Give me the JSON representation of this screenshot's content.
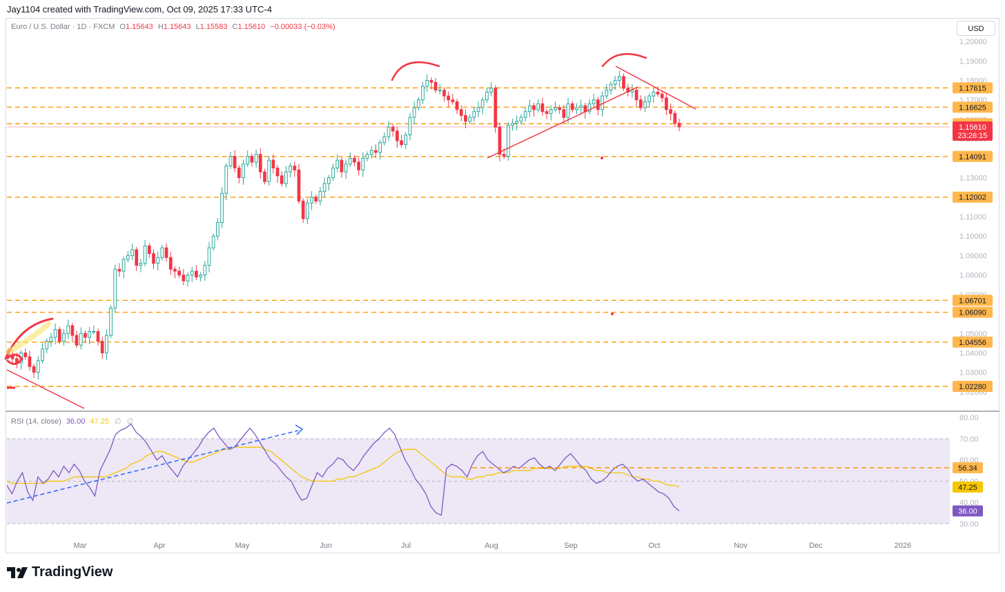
{
  "header": {
    "attribution": "Jay1104 created with TradingView.com, Oct 09, 2025 17:33 UTC-4"
  },
  "legend": {
    "symbol": "Euro / U.S. Dollar · 1D · FXCM",
    "open_label": "O",
    "open": "1.15643",
    "high_label": "H",
    "high": "1.15643",
    "low_label": "L",
    "low": "1.15583",
    "close_label": "C",
    "close": "1.15610",
    "change": "−0.00033 (−0.03%)"
  },
  "currency_button": "USD",
  "rsi_legend": {
    "label": "RSI (14, close)",
    "rsi_value": "36.00",
    "ma_value": "47.25",
    "icons": [
      "∅",
      "∅"
    ]
  },
  "brand": {
    "name": "TradingView"
  },
  "colors": {
    "up": "#26a69a",
    "down": "#f23645",
    "level_line": "#ff9800",
    "level_badge": "#ffb74d",
    "drawing": "#f23645",
    "rsi_line": "#7e57c2",
    "rsi_ma": "#f7c600",
    "rsi_band": "#ede7f6",
    "rsi_trend": "#2962ff"
  },
  "chart_data": [
    {
      "type": "candlestick",
      "title": "Euro / U.S. Dollar · 1D · FXCM",
      "x_tick_labels": [
        "Mar",
        "Apr",
        "May",
        "Jun",
        "Jul",
        "Aug",
        "Sep",
        "Oct",
        "Nov",
        "Dec",
        "2026"
      ],
      "y_tick_labels": [
        "1.20000",
        "1.19000",
        "1.18000",
        "1.17000",
        "1.16000",
        "1.15000",
        "1.14000",
        "1.13000",
        "1.12000",
        "1.11000",
        "1.10000",
        "1.09000",
        "1.08000",
        "1.07000",
        "1.06000",
        "1.05000",
        "1.04000",
        "1.03000",
        "1.02000"
      ],
      "ylim": [
        1.015,
        1.205
      ],
      "grid": false,
      "horizontal_levels": [
        1.17615,
        1.16625,
        1.15772,
        1.14091,
        1.12002,
        1.06701,
        1.0609,
        1.04556,
        1.0228
      ],
      "level_labels": [
        "1.17615",
        "1.16625",
        "1.15772",
        "1.14091",
        "1.12002",
        "1.06701",
        "1.06090",
        "1.04556",
        "1.02280"
      ],
      "last_price": "1.15610",
      "countdown": "23:26:15",
      "closes_approx": [
        1.039,
        1.037,
        1.035,
        1.04,
        1.038,
        1.033,
        1.03,
        1.036,
        1.042,
        1.046,
        1.048,
        1.052,
        1.046,
        1.05,
        1.054,
        1.049,
        1.044,
        1.05,
        1.048,
        1.051,
        1.051,
        1.046,
        1.04,
        1.049,
        1.063,
        1.083,
        1.082,
        1.088,
        1.09,
        1.093,
        1.085,
        1.086,
        1.095,
        1.091,
        1.086,
        1.089,
        1.094,
        1.089,
        1.083,
        1.082,
        1.08,
        1.077,
        1.08,
        1.082,
        1.079,
        1.08,
        1.085,
        1.094,
        1.1,
        1.107,
        1.122,
        1.136,
        1.141,
        1.135,
        1.13,
        1.137,
        1.141,
        1.138,
        1.142,
        1.133,
        1.128,
        1.139,
        1.135,
        1.131,
        1.127,
        1.133,
        1.136,
        1.134,
        1.118,
        1.109,
        1.117,
        1.12,
        1.118,
        1.123,
        1.127,
        1.13,
        1.135,
        1.139,
        1.133,
        1.137,
        1.14,
        1.138,
        1.134,
        1.14,
        1.142,
        1.144,
        1.143,
        1.148,
        1.151,
        1.156,
        1.154,
        1.149,
        1.147,
        1.152,
        1.161,
        1.166,
        1.17,
        1.177,
        1.18,
        1.179,
        1.175,
        1.175,
        1.172,
        1.17,
        1.169,
        1.165,
        1.162,
        1.159,
        1.161,
        1.164,
        1.166,
        1.17,
        1.174,
        1.176,
        1.156,
        1.142,
        1.141,
        1.157,
        1.158,
        1.159,
        1.161,
        1.164,
        1.167,
        1.165,
        1.168,
        1.164,
        1.163,
        1.165,
        1.166,
        1.165,
        1.161,
        1.168,
        1.165,
        1.166,
        1.167,
        1.164,
        1.168,
        1.17,
        1.165,
        1.172,
        1.175,
        1.178,
        1.18,
        1.182,
        1.176,
        1.174,
        1.175,
        1.17,
        1.166,
        1.169,
        1.172,
        1.174,
        1.173,
        1.171,
        1.165,
        1.163,
        1.158,
        1.1561
      ]
    },
    {
      "type": "line",
      "title": "RSI (14, close)",
      "y_tick_labels": [
        "80.00",
        "70.00",
        "60.00",
        "50.00",
        "40.00",
        "30.00"
      ],
      "ylim": [
        29,
        81
      ],
      "band": [
        30,
        70
      ],
      "level_labels": [
        "56.34",
        "47.25",
        "36.00"
      ],
      "series": [
        {
          "name": "RSI (14, close)",
          "values": [
            48,
            44,
            50,
            54,
            45,
            41,
            52,
            49,
            51,
            55,
            52,
            57,
            54,
            58,
            55,
            50,
            47,
            43,
            55,
            60,
            65,
            72,
            74,
            75,
            77,
            73,
            71,
            68,
            64,
            60,
            62,
            58,
            55,
            52,
            57,
            60,
            63,
            66,
            70,
            73,
            75,
            71,
            68,
            65,
            66,
            69,
            72,
            75,
            72,
            68,
            64,
            60,
            58,
            55,
            52,
            50,
            45,
            41,
            42,
            48,
            54,
            52,
            56,
            58,
            61,
            60,
            57,
            55,
            58,
            62,
            65,
            68,
            70,
            73,
            75,
            72,
            66,
            60,
            56,
            51,
            48,
            44,
            38,
            35,
            34,
            56,
            58,
            57,
            55,
            52,
            58,
            62,
            64,
            60,
            58,
            56,
            54,
            55,
            57,
            56,
            58,
            60,
            61,
            58,
            56,
            57,
            55,
            58,
            61,
            63,
            60,
            57,
            55,
            51,
            49,
            50,
            52,
            55,
            57,
            58,
            56,
            52,
            50,
            51,
            49,
            47,
            45,
            44,
            42,
            38,
            36
          ]
        },
        {
          "name": "RSI-based MA",
          "values": [
            50,
            49,
            49,
            49,
            49,
            49,
            49,
            49,
            50,
            50,
            50,
            50,
            51,
            52,
            52,
            52,
            52,
            52,
            52,
            52,
            53,
            54,
            55,
            56,
            58,
            59,
            60,
            62,
            63,
            64,
            64,
            63,
            62,
            61,
            60,
            59,
            59,
            60,
            61,
            62,
            63,
            64,
            65,
            65,
            66,
            66,
            66,
            66,
            66,
            66,
            65,
            64,
            62,
            60,
            58,
            56,
            54,
            52,
            51,
            50,
            50,
            50,
            50,
            50,
            51,
            51,
            52,
            52,
            53,
            54,
            55,
            56,
            57,
            59,
            61,
            63,
            64,
            65,
            65,
            65,
            63,
            61,
            59,
            57,
            55,
            53,
            52,
            52,
            52,
            51,
            51,
            52,
            52,
            53,
            53,
            54,
            54,
            54,
            55,
            55,
            55,
            55,
            56,
            56,
            56,
            56,
            56,
            56,
            57,
            57,
            57,
            57,
            57,
            56,
            55,
            55,
            54,
            54,
            54,
            54,
            53,
            52,
            52,
            51,
            51,
            50,
            50,
            49,
            48,
            48,
            47.25
          ]
        }
      ],
      "x_tick_labels": [
        "Mar",
        "Apr",
        "May",
        "Jun",
        "Jul",
        "Aug",
        "Sep",
        "Oct",
        "Nov",
        "Dec",
        "2026"
      ]
    }
  ]
}
